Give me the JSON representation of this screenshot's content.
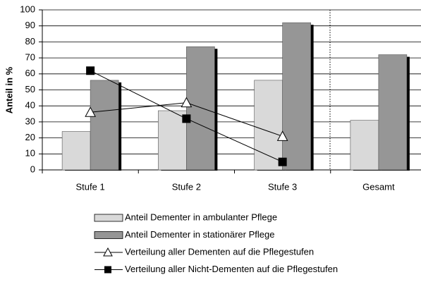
{
  "chart_data": {
    "type": "bar",
    "y_label": "Anteil in %",
    "categories": [
      "Stufe 1",
      "Stufe 2",
      "Stufe 3",
      "Gesamt"
    ],
    "series": [
      {
        "name": "Anteil Dementer in ambulanter Pflege",
        "type": "bar",
        "color": "#d9d9d9",
        "values": [
          24,
          37,
          56,
          31
        ]
      },
      {
        "name": "Anteil Dementer in stationärer Pflege",
        "type": "bar",
        "color": "#969696",
        "values": [
          56,
          77,
          92,
          72
        ]
      },
      {
        "name": "Verteilung aller Dementen auf die Pflegestufen",
        "type": "line",
        "marker": "triangle",
        "color": "#000000",
        "values": [
          36,
          42,
          21,
          null
        ]
      },
      {
        "name": "Verteilung aller Nicht-Dementen auf die Pflegestufen",
        "type": "line",
        "marker": "square",
        "color": "#000000",
        "values": [
          62,
          32,
          5,
          null
        ]
      }
    ],
    "ylim": [
      0,
      100
    ],
    "yticks": [
      0,
      10,
      20,
      30,
      40,
      50,
      60,
      70,
      80,
      90,
      100
    ],
    "grid": true
  }
}
